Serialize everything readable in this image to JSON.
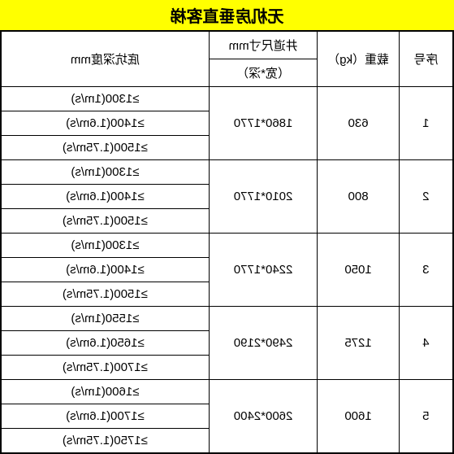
{
  "title": "无机房垂直客梯",
  "headers": {
    "seq": "序号",
    "load": "载重（kg）",
    "shaft_top": "井道尺寸mm",
    "shaft_sub": "（宽*深）",
    "depth": "底坑深度mm"
  },
  "rows": [
    {
      "seq": "1",
      "load": "630",
      "shaft": "1860*1770",
      "depths": [
        "≥1300(1m/s)",
        "≥1400(1.6m/s)",
        "≥1500(1.75m/s)"
      ]
    },
    {
      "seq": "2",
      "load": "800",
      "shaft": "2010*1770",
      "depths": [
        "≥1300(1m/s)",
        "≥1400(1.6m/s)",
        "≥1500(1.75m/s)"
      ]
    },
    {
      "seq": "3",
      "load": "1050",
      "shaft": "2240*1770",
      "depths": [
        "≥1300(1m/s)",
        "≥1400(1.6m/s)",
        "≥1500(1.75m/s)"
      ]
    },
    {
      "seq": "4",
      "load": "1275",
      "shaft": "2490*2190",
      "depths": [
        "≥1550(1m/s)",
        "≥1650(1.6m/s)",
        "≥1700(1.75m/s)"
      ]
    },
    {
      "seq": "5",
      "load": "1600",
      "shaft": "2600*2400",
      "depths": [
        "≥1600(1m/s)",
        "≥1700(1.6m/s)",
        "≥1750(1.75m/s)"
      ]
    }
  ],
  "styling": {
    "title_bg": "#ffff00",
    "border_color": "#000000",
    "background": "#ffffff",
    "title_fontsize": 20,
    "cell_fontsize": 15
  }
}
